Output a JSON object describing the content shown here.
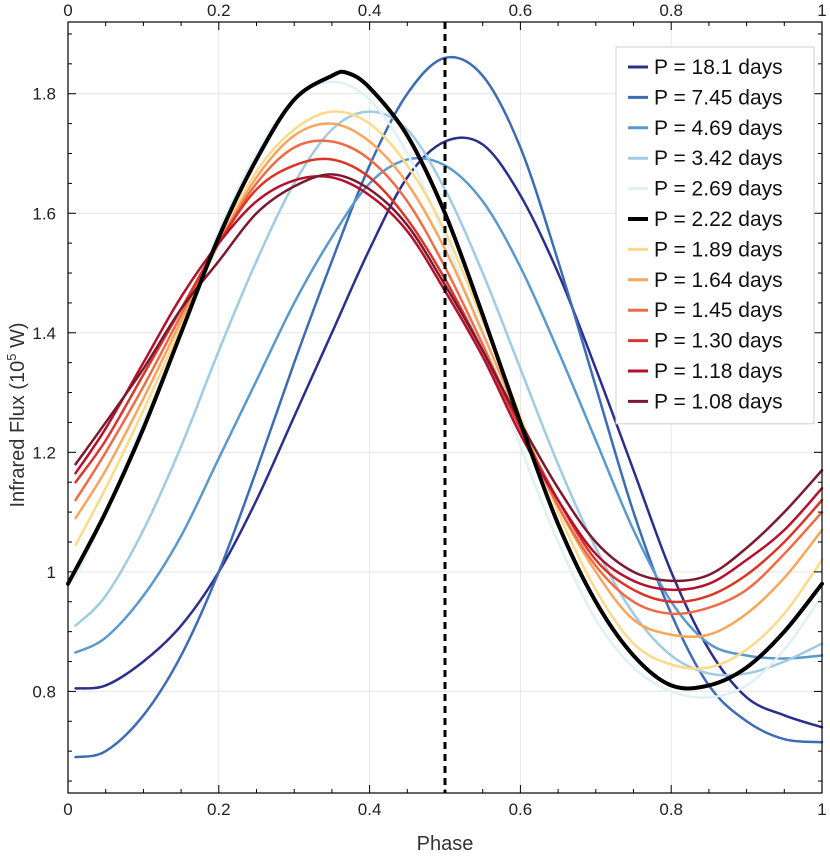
{
  "chart_data": {
    "type": "line",
    "title": "",
    "xlabel": "Phase",
    "ylabel_main": "Infrared Flux (10",
    "ylabel_exp": "5",
    "ylabel_unit": " W)",
    "xlim": [
      0,
      1
    ],
    "ylim": [
      0.63,
      1.92
    ],
    "grid": true,
    "legend_position": "top-right",
    "x_ticks": [
      {
        "value": 0,
        "label": "0"
      },
      {
        "value": 0.2,
        "label": "0.2"
      },
      {
        "value": 0.4,
        "label": "0.4"
      },
      {
        "value": 0.6,
        "label": "0.6"
      },
      {
        "value": 0.8,
        "label": "0.8"
      },
      {
        "value": 1,
        "label": "1"
      }
    ],
    "y_ticks": [
      {
        "value": 0.8,
        "label": "0.8"
      },
      {
        "value": 1.0,
        "label": "1"
      },
      {
        "value": 1.2,
        "label": "1.2"
      },
      {
        "value": 1.4,
        "label": "1.4"
      },
      {
        "value": 1.6,
        "label": "1.6"
      },
      {
        "value": 1.8,
        "label": "1.8"
      }
    ],
    "x_minor_step": 0.05,
    "y_minor_step": 0.05,
    "vline": {
      "x": 0.5,
      "style": "dashed",
      "color": "#000000"
    },
    "series": [
      {
        "name": "P = 18.1 days",
        "color": "#2b2f8c",
        "width": 2.5,
        "x": [
          0.01,
          0.05,
          0.1,
          0.15,
          0.2,
          0.25,
          0.3,
          0.35,
          0.4,
          0.45,
          0.5,
          0.55,
          0.6,
          0.65,
          0.7,
          0.75,
          0.8,
          0.85,
          0.9,
          0.95,
          1.0
        ],
        "y": [
          0.805,
          0.81,
          0.85,
          0.91,
          1.0,
          1.12,
          1.26,
          1.4,
          1.54,
          1.66,
          1.72,
          1.715,
          1.63,
          1.5,
          1.34,
          1.17,
          1.0,
          0.87,
          0.79,
          0.76,
          0.74
        ]
      },
      {
        "name": "P = 7.45 days",
        "color": "#3d6cb5",
        "width": 2.5,
        "x": [
          0.01,
          0.05,
          0.1,
          0.15,
          0.2,
          0.25,
          0.3,
          0.35,
          0.4,
          0.45,
          0.5,
          0.55,
          0.6,
          0.65,
          0.7,
          0.75,
          0.8,
          0.85,
          0.9,
          0.95,
          1.0
        ],
        "y": [
          0.69,
          0.7,
          0.76,
          0.86,
          1.0,
          1.17,
          1.35,
          1.52,
          1.68,
          1.8,
          1.86,
          1.83,
          1.71,
          1.52,
          1.31,
          1.1,
          0.93,
          0.81,
          0.75,
          0.72,
          0.715
        ]
      },
      {
        "name": "P = 4.69 days",
        "color": "#5a99cc",
        "width": 2.5,
        "x": [
          0.01,
          0.05,
          0.1,
          0.15,
          0.2,
          0.25,
          0.3,
          0.35,
          0.4,
          0.45,
          0.5,
          0.55,
          0.6,
          0.65,
          0.7,
          0.75,
          0.8,
          0.85,
          0.9,
          0.95,
          1.0
        ],
        "y": [
          0.865,
          0.89,
          0.96,
          1.06,
          1.19,
          1.32,
          1.45,
          1.56,
          1.65,
          1.69,
          1.68,
          1.62,
          1.51,
          1.37,
          1.22,
          1.07,
          0.95,
          0.88,
          0.86,
          0.855,
          0.86
        ]
      },
      {
        "name": "P = 3.42 days",
        "color": "#9fcbe4",
        "width": 2.5,
        "x": [
          0.01,
          0.05,
          0.1,
          0.15,
          0.2,
          0.25,
          0.3,
          0.35,
          0.4,
          0.45,
          0.5,
          0.55,
          0.6,
          0.65,
          0.7,
          0.75,
          0.8,
          0.85,
          0.9,
          0.95,
          1.0
        ],
        "y": [
          0.91,
          0.96,
          1.07,
          1.21,
          1.37,
          1.52,
          1.65,
          1.74,
          1.77,
          1.74,
          1.64,
          1.5,
          1.34,
          1.18,
          1.04,
          0.93,
          0.86,
          0.83,
          0.83,
          0.85,
          0.88
        ]
      },
      {
        "name": "P = 2.69 days",
        "color": "#dff0f6",
        "width": 2.5,
        "x": [
          0.01,
          0.05,
          0.1,
          0.15,
          0.2,
          0.25,
          0.3,
          0.35,
          0.4,
          0.45,
          0.5,
          0.55,
          0.6,
          0.65,
          0.7,
          0.75,
          0.8,
          0.85,
          0.9,
          0.95,
          1.0
        ],
        "y": [
          0.99,
          1.1,
          1.25,
          1.41,
          1.57,
          1.7,
          1.79,
          1.82,
          1.79,
          1.7,
          1.56,
          1.39,
          1.21,
          1.05,
          0.92,
          0.84,
          0.8,
          0.79,
          0.81,
          0.87,
          0.96
        ]
      },
      {
        "name": "P = 2.22 days",
        "color": "#000000",
        "width": 4,
        "x": [
          0.0,
          0.05,
          0.1,
          0.15,
          0.2,
          0.25,
          0.3,
          0.35,
          0.37,
          0.4,
          0.45,
          0.5,
          0.55,
          0.6,
          0.65,
          0.7,
          0.75,
          0.8,
          0.85,
          0.9,
          0.95,
          1.0
        ],
        "y": [
          0.98,
          1.1,
          1.24,
          1.4,
          1.56,
          1.69,
          1.79,
          1.83,
          1.835,
          1.81,
          1.73,
          1.6,
          1.43,
          1.25,
          1.08,
          0.95,
          0.86,
          0.81,
          0.81,
          0.84,
          0.9,
          0.98
        ]
      },
      {
        "name": "P = 1.89 days",
        "color": "#fdd98a",
        "width": 2.5,
        "x": [
          0.01,
          0.05,
          0.1,
          0.15,
          0.2,
          0.25,
          0.3,
          0.35,
          0.4,
          0.45,
          0.5,
          0.55,
          0.6,
          0.65,
          0.7,
          0.75,
          0.8,
          0.85,
          0.9,
          0.95,
          1.0
        ],
        "y": [
          1.045,
          1.14,
          1.27,
          1.41,
          1.55,
          1.67,
          1.74,
          1.77,
          1.75,
          1.68,
          1.57,
          1.42,
          1.26,
          1.1,
          0.97,
          0.88,
          0.845,
          0.84,
          0.87,
          0.93,
          1.02
        ]
      },
      {
        "name": "P = 1.64 days",
        "color": "#f9a55c",
        "width": 2.5,
        "x": [
          0.01,
          0.05,
          0.1,
          0.15,
          0.2,
          0.25,
          0.3,
          0.35,
          0.4,
          0.45,
          0.5,
          0.55,
          0.6,
          0.65,
          0.7,
          0.75,
          0.8,
          0.85,
          0.9,
          0.95,
          1.0
        ],
        "y": [
          1.09,
          1.17,
          1.29,
          1.42,
          1.55,
          1.66,
          1.73,
          1.75,
          1.72,
          1.65,
          1.54,
          1.4,
          1.25,
          1.11,
          1.0,
          0.92,
          0.895,
          0.895,
          0.93,
          0.99,
          1.07
        ]
      },
      {
        "name": "P = 1.45 days",
        "color": "#ee6b45",
        "width": 2.5,
        "x": [
          0.01,
          0.05,
          0.1,
          0.15,
          0.2,
          0.25,
          0.3,
          0.35,
          0.4,
          0.45,
          0.5,
          0.55,
          0.6,
          0.65,
          0.7,
          0.75,
          0.8,
          0.85,
          0.9,
          0.95,
          1.0
        ],
        "y": [
          1.12,
          1.2,
          1.31,
          1.43,
          1.55,
          1.65,
          1.71,
          1.72,
          1.69,
          1.62,
          1.51,
          1.38,
          1.24,
          1.11,
          1.01,
          0.95,
          0.93,
          0.94,
          0.97,
          1.03,
          1.1
        ]
      },
      {
        "name": "P = 1.30 days",
        "color": "#d93529",
        "width": 2.5,
        "x": [
          0.01,
          0.05,
          0.1,
          0.15,
          0.2,
          0.25,
          0.3,
          0.35,
          0.4,
          0.45,
          0.5,
          0.55,
          0.6,
          0.65,
          0.7,
          0.75,
          0.8,
          0.85,
          0.9,
          0.95,
          1.0
        ],
        "y": [
          1.15,
          1.22,
          1.33,
          1.44,
          1.55,
          1.64,
          1.68,
          1.69,
          1.66,
          1.59,
          1.49,
          1.37,
          1.24,
          1.12,
          1.02,
          0.97,
          0.95,
          0.96,
          0.995,
          1.05,
          1.12
        ]
      },
      {
        "name": "P = 1.18 days",
        "color": "#b3112c",
        "width": 2.5,
        "x": [
          0.01,
          0.05,
          0.1,
          0.15,
          0.2,
          0.25,
          0.3,
          0.35,
          0.4,
          0.45,
          0.5,
          0.55,
          0.6,
          0.65,
          0.7,
          0.75,
          0.8,
          0.85,
          0.9,
          0.95,
          1.0
        ],
        "y": [
          1.165,
          1.24,
          1.35,
          1.46,
          1.55,
          1.62,
          1.655,
          1.66,
          1.63,
          1.57,
          1.47,
          1.36,
          1.23,
          1.12,
          1.03,
          0.985,
          0.97,
          0.98,
          1.02,
          1.07,
          1.14
        ]
      },
      {
        "name": "P = 1.08 days",
        "color": "#7a1a2e",
        "width": 2.5,
        "x": [
          0.01,
          0.05,
          0.1,
          0.15,
          0.2,
          0.25,
          0.3,
          0.35,
          0.4,
          0.45,
          0.5,
          0.55,
          0.6,
          0.65,
          0.7,
          0.75,
          0.8,
          0.85,
          0.9,
          0.95,
          1.0
        ],
        "y": [
          1.18,
          1.25,
          1.34,
          1.44,
          1.52,
          1.6,
          1.645,
          1.665,
          1.64,
          1.58,
          1.48,
          1.37,
          1.25,
          1.14,
          1.05,
          1.0,
          0.985,
          0.995,
          1.04,
          1.1,
          1.17
        ]
      }
    ]
  }
}
